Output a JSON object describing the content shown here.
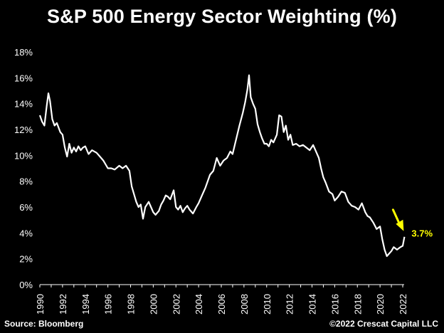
{
  "header": {
    "title": "S&P 500 Energy Sector Weighting (%)"
  },
  "footer": {
    "source": "Source: Bloomberg",
    "copyright": "©2022 Crescat Capital LLC"
  },
  "colors": {
    "background": "#000000",
    "line": "#ffffff",
    "annotation": "#ffff00"
  },
  "chart_data": {
    "type": "line",
    "title": "S&P 500 Energy Sector Weighting (%)",
    "xlabel": "",
    "ylabel": "",
    "xlim": [
      1990,
      2022
    ],
    "ylim": [
      0,
      18
    ],
    "y_ticks": [
      0,
      2,
      4,
      6,
      8,
      10,
      12,
      14,
      16,
      18
    ],
    "y_tick_labels": [
      "0%",
      "2%",
      "4%",
      "6%",
      "8%",
      "10%",
      "12%",
      "14%",
      "16%",
      "18%"
    ],
    "x_ticks": [
      1990,
      1992,
      1994,
      1996,
      1998,
      2000,
      2002,
      2004,
      2006,
      2008,
      2010,
      2012,
      2014,
      2016,
      2018,
      2020,
      2022
    ],
    "x_tick_labels": [
      "1990",
      "1992",
      "1994",
      "1996",
      "1998",
      "2000",
      "2002",
      "2004",
      "2006",
      "2008",
      "2010",
      "2012",
      "2014",
      "2016",
      "2018",
      "2020",
      "2022"
    ],
    "grid": false,
    "legend": "none",
    "series": [
      {
        "x": [
          1990.0,
          1990.2,
          1990.4,
          1990.6,
          1990.75,
          1990.9,
          1991.1,
          1991.3,
          1991.5,
          1991.8,
          1992.0,
          1992.2,
          1992.4,
          1992.6,
          1992.8,
          1993.0,
          1993.2,
          1993.4,
          1993.6,
          1993.8,
          1994.0,
          1994.3,
          1994.6,
          1995.0,
          1995.3,
          1995.6,
          1996.0,
          1996.3,
          1996.6,
          1997.0,
          1997.3,
          1997.6,
          1997.9,
          1998.1,
          1998.3,
          1998.5,
          1998.7,
          1998.9,
          1999.1,
          1999.3,
          1999.6,
          1999.8,
          2000.0,
          2000.2,
          2000.5,
          2000.7,
          2000.9,
          2001.1,
          2001.3,
          2001.5,
          2001.8,
          2002.0,
          2002.2,
          2002.4,
          2002.6,
          2002.8,
          2003.0,
          2003.2,
          2003.5,
          2003.8,
          2004.0,
          2004.3,
          2004.6,
          2005.0,
          2005.3,
          2005.6,
          2005.9,
          2006.2,
          2006.5,
          2006.8,
          2007.0,
          2007.3,
          2007.6,
          2007.9,
          2008.1,
          2008.3,
          2008.45,
          2008.6,
          2008.8,
          2009.0,
          2009.2,
          2009.4,
          2009.6,
          2009.8,
          2010.0,
          2010.2,
          2010.4,
          2010.6,
          2010.9,
          2011.1,
          2011.3,
          2011.5,
          2011.7,
          2011.9,
          2012.1,
          2012.3,
          2012.6,
          2012.9,
          2013.2,
          2013.5,
          2013.8,
          2014.1,
          2014.4,
          2014.6,
          2014.8,
          2015.0,
          2015.2,
          2015.5,
          2015.8,
          2016.0,
          2016.3,
          2016.6,
          2016.9,
          2017.2,
          2017.5,
          2017.8,
          2018.1,
          2018.4,
          2018.7,
          2018.9,
          2019.1,
          2019.4,
          2019.7,
          2020.0,
          2020.2,
          2020.4,
          2020.6,
          2020.8,
          2021.0,
          2021.2,
          2021.5,
          2021.8,
          2022.0,
          2022.15
        ],
        "values": [
          13.1,
          12.6,
          12.3,
          13.8,
          14.8,
          14.2,
          12.8,
          12.3,
          12.5,
          11.8,
          11.6,
          10.6,
          9.9,
          10.9,
          10.2,
          10.6,
          10.3,
          10.7,
          10.4,
          10.6,
          10.7,
          10.1,
          10.4,
          10.2,
          9.9,
          9.6,
          9.0,
          9.0,
          8.9,
          9.2,
          9.0,
          9.2,
          8.8,
          7.6,
          7.0,
          6.4,
          6.0,
          6.2,
          5.1,
          6.0,
          6.4,
          6.0,
          5.6,
          5.4,
          5.7,
          6.2,
          6.5,
          6.9,
          6.8,
          6.6,
          7.3,
          6.0,
          5.8,
          6.1,
          5.6,
          5.9,
          6.1,
          5.8,
          5.5,
          6.0,
          6.3,
          6.9,
          7.5,
          8.5,
          8.8,
          9.8,
          9.2,
          9.6,
          9.8,
          10.3,
          10.1,
          11.2,
          12.3,
          13.3,
          14.1,
          15.1,
          16.2,
          14.5,
          14.0,
          13.6,
          12.4,
          11.8,
          11.3,
          10.9,
          10.9,
          10.7,
          11.2,
          11.0,
          11.6,
          13.1,
          13.0,
          11.8,
          12.3,
          11.2,
          11.6,
          10.8,
          10.9,
          10.7,
          10.8,
          10.6,
          10.4,
          10.8,
          10.2,
          9.8,
          9.0,
          8.3,
          7.9,
          7.2,
          7.0,
          6.5,
          6.8,
          7.2,
          7.1,
          6.4,
          6.1,
          6.0,
          5.8,
          6.3,
          5.6,
          5.3,
          5.2,
          4.8,
          4.3,
          4.5,
          3.5,
          2.7,
          2.2,
          2.4,
          2.6,
          2.9,
          2.7,
          2.9,
          3.0,
          3.7
        ]
      }
    ],
    "annotation": {
      "label": "3.7%",
      "x": 2022.15,
      "y": 3.7
    }
  }
}
